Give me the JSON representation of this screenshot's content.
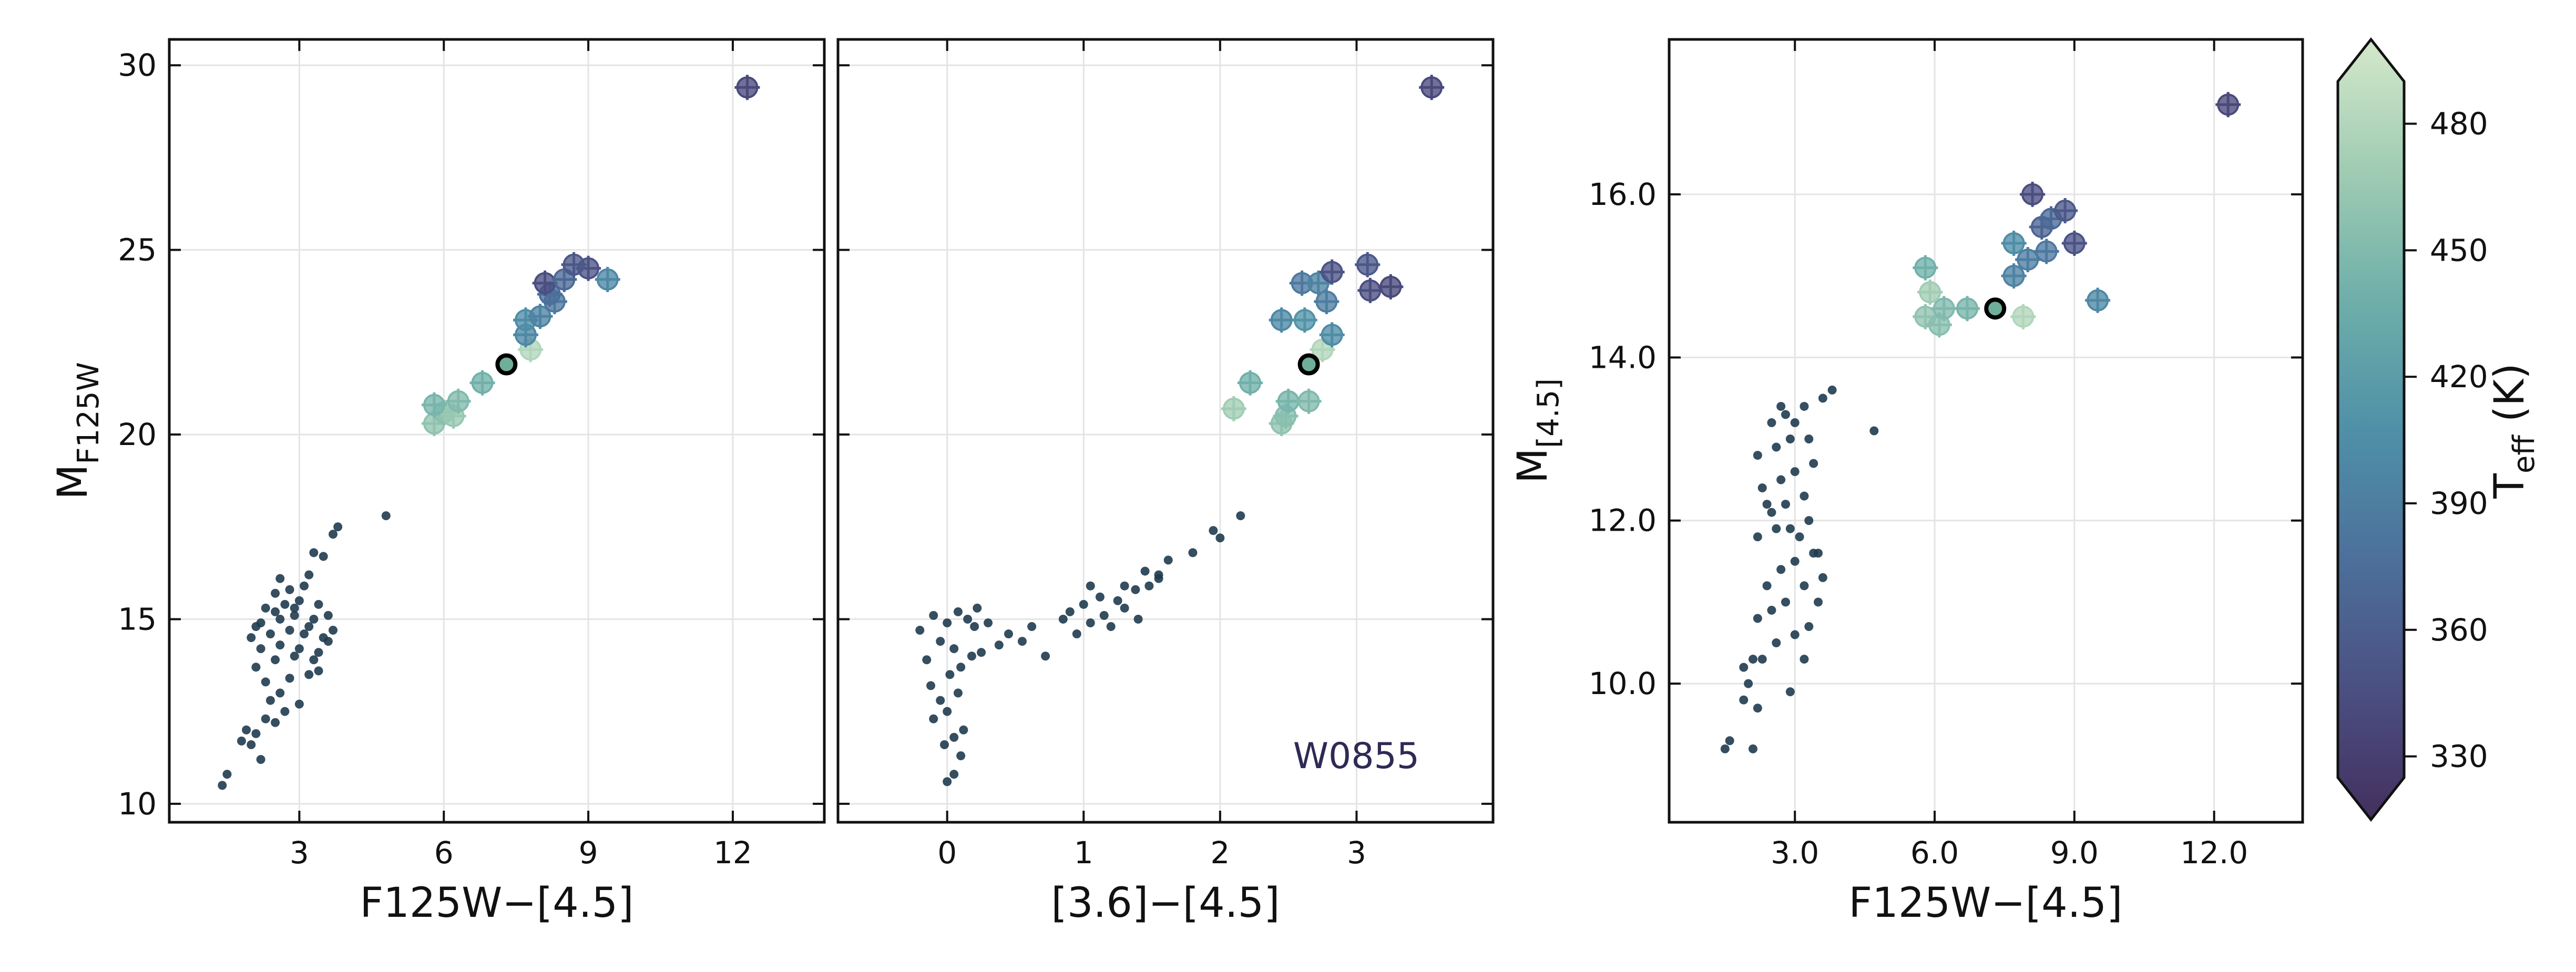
{
  "colors": {
    "frame": "#111111",
    "grid": "#e4e4e4",
    "box_fill": "#e6e6e6",
    "field_dot": "#1f3b4f",
    "highlight_edge": "#000000",
    "annotation": "#2e2a55",
    "cmap": [
      "#43305e",
      "#4b4f82",
      "#4c709b",
      "#4f90a8",
      "#6eafaa",
      "#a0ccb3",
      "#d4e8cb"
    ]
  },
  "chart_data": [
    {
      "id": "left",
      "type": "scatter",
      "xlabel": "F125W−[4.5]",
      "ylabel": "M",
      "ylabel_sub": "F125W",
      "xlim": [
        0.3,
        13.9
      ],
      "ylim": [
        30.7,
        9.5
      ],
      "xticks": [
        3,
        6,
        9,
        12
      ],
      "yticks": [
        10,
        15,
        20,
        25,
        30
      ],
      "tick_decimals": 0,
      "grid": true,
      "highlight_box": {
        "x0": 4.8,
        "x1": 10.4,
        "y0": 19.6,
        "y1": 25.2
      },
      "highlight_point": {
        "x": 7.3,
        "y": 21.9
      },
      "field_points": [
        [
          1.4,
          10.5
        ],
        [
          1.5,
          10.8
        ],
        [
          2.2,
          11.2
        ],
        [
          1.8,
          11.7
        ],
        [
          2.0,
          11.6
        ],
        [
          2.1,
          11.9
        ],
        [
          1.9,
          12.0
        ],
        [
          2.3,
          12.3
        ],
        [
          2.5,
          12.2
        ],
        [
          2.7,
          12.5
        ],
        [
          3.0,
          12.7
        ],
        [
          2.4,
          12.8
        ],
        [
          2.6,
          13.0
        ],
        [
          2.3,
          13.3
        ],
        [
          2.8,
          13.4
        ],
        [
          3.2,
          13.5
        ],
        [
          3.4,
          13.6
        ],
        [
          2.1,
          13.7
        ],
        [
          2.5,
          13.9
        ],
        [
          2.9,
          14.0
        ],
        [
          3.3,
          13.9
        ],
        [
          2.2,
          14.2
        ],
        [
          2.6,
          14.3
        ],
        [
          3.0,
          14.2
        ],
        [
          3.4,
          14.1
        ],
        [
          3.6,
          14.4
        ],
        [
          2.0,
          14.5
        ],
        [
          2.4,
          14.6
        ],
        [
          2.8,
          14.7
        ],
        [
          3.1,
          14.6
        ],
        [
          3.5,
          14.5
        ],
        [
          3.7,
          14.7
        ],
        [
          2.2,
          14.9
        ],
        [
          2.6,
          15.0
        ],
        [
          2.9,
          15.1
        ],
        [
          3.3,
          15.0
        ],
        [
          3.6,
          15.1
        ],
        [
          2.3,
          15.3
        ],
        [
          2.7,
          15.4
        ],
        [
          3.0,
          15.5
        ],
        [
          3.4,
          15.4
        ],
        [
          2.5,
          15.7
        ],
        [
          2.8,
          15.8
        ],
        [
          3.1,
          15.9
        ],
        [
          2.6,
          16.1
        ],
        [
          3.2,
          16.2
        ],
        [
          3.5,
          16.7
        ],
        [
          3.3,
          16.8
        ],
        [
          3.7,
          17.3
        ],
        [
          3.8,
          17.5
        ],
        [
          4.8,
          17.8
        ],
        [
          2.1,
          14.8
        ],
        [
          2.9,
          15.3
        ],
        [
          3.2,
          14.8
        ],
        [
          2.5,
          15.2
        ]
      ],
      "bd_points": [
        {
          "x": 5.8,
          "y": 20.3,
          "teff": 460
        },
        {
          "x": 6.0,
          "y": 20.6,
          "teff": 455
        },
        {
          "x": 6.2,
          "y": 20.5,
          "teff": 465
        },
        {
          "x": 5.8,
          "y": 20.8,
          "teff": 445
        },
        {
          "x": 6.3,
          "y": 20.9,
          "teff": 450
        },
        {
          "x": 6.8,
          "y": 21.4,
          "teff": 440
        },
        {
          "x": 7.8,
          "y": 22.3,
          "teff": 480
        },
        {
          "x": 7.7,
          "y": 22.7,
          "teff": 400
        },
        {
          "x": 7.7,
          "y": 23.1,
          "teff": 405
        },
        {
          "x": 8.0,
          "y": 23.2,
          "teff": 395
        },
        {
          "x": 8.3,
          "y": 23.6,
          "teff": 385
        },
        {
          "x": 8.2,
          "y": 23.8,
          "teff": 375
        },
        {
          "x": 8.1,
          "y": 24.1,
          "teff": 345
        },
        {
          "x": 8.5,
          "y": 24.2,
          "teff": 370
        },
        {
          "x": 9.4,
          "y": 24.2,
          "teff": 400
        },
        {
          "x": 9.0,
          "y": 24.5,
          "teff": 350
        },
        {
          "x": 8.7,
          "y": 24.6,
          "teff": 355
        },
        {
          "x": 12.3,
          "y": 29.4,
          "teff": 340
        }
      ]
    },
    {
      "id": "middle",
      "type": "scatter",
      "xlabel": "[3.6]−[4.5]",
      "xlim": [
        -0.8,
        4.0
      ],
      "ylim": [
        30.7,
        9.5
      ],
      "xticks": [
        0,
        1,
        2,
        3
      ],
      "yticks": [
        10,
        15,
        20,
        25,
        30
      ],
      "tick_decimals": 0,
      "grid": true,
      "annotation": {
        "text": "W0855"
      },
      "highlight_box": {
        "x0": 1.85,
        "x1": 3.55,
        "y0": 19.6,
        "y1": 25.2
      },
      "highlight_point": {
        "x": 2.65,
        "y": 21.9
      },
      "field_points": [
        [
          0.0,
          10.6
        ],
        [
          0.05,
          10.8
        ],
        [
          0.1,
          11.3
        ],
        [
          -0.02,
          11.6
        ],
        [
          0.05,
          11.8
        ],
        [
          0.12,
          12.0
        ],
        [
          -0.1,
          12.3
        ],
        [
          0.0,
          12.5
        ],
        [
          -0.05,
          12.8
        ],
        [
          0.08,
          13.0
        ],
        [
          -0.12,
          13.2
        ],
        [
          0.02,
          13.5
        ],
        [
          0.1,
          13.7
        ],
        [
          -0.15,
          13.9
        ],
        [
          0.18,
          14.0
        ],
        [
          0.25,
          14.1
        ],
        [
          0.38,
          14.3
        ],
        [
          0.55,
          14.4
        ],
        [
          0.72,
          14.0
        ],
        [
          0.45,
          14.6
        ],
        [
          0.62,
          14.8
        ],
        [
          -0.2,
          14.7
        ],
        [
          0.0,
          14.9
        ],
        [
          0.15,
          15.0
        ],
        [
          0.3,
          14.9
        ],
        [
          -0.1,
          15.1
        ],
        [
          0.08,
          15.2
        ],
        [
          0.22,
          15.3
        ],
        [
          0.95,
          14.6
        ],
        [
          1.05,
          14.9
        ],
        [
          1.15,
          15.1
        ],
        [
          0.9,
          15.2
        ],
        [
          1.2,
          14.8
        ],
        [
          1.3,
          15.3
        ],
        [
          1.4,
          15.0
        ],
        [
          1.0,
          15.4
        ],
        [
          1.12,
          15.6
        ],
        [
          1.25,
          15.5
        ],
        [
          1.38,
          15.8
        ],
        [
          1.48,
          15.9
        ],
        [
          1.55,
          16.1
        ],
        [
          1.45,
          16.3
        ],
        [
          1.62,
          16.6
        ],
        [
          1.55,
          16.2
        ],
        [
          1.8,
          16.8
        ],
        [
          2.0,
          17.2
        ],
        [
          1.95,
          17.4
        ],
        [
          2.15,
          17.8
        ],
        [
          0.05,
          14.2
        ],
        [
          0.2,
          14.8
        ],
        [
          1.05,
          15.9
        ],
        [
          1.3,
          15.9
        ],
        [
          0.85,
          15.0
        ],
        [
          -0.05,
          14.4
        ]
      ],
      "bd_points": [
        {
          "x": 2.45,
          "y": 20.3,
          "teff": 460
        },
        {
          "x": 2.48,
          "y": 20.5,
          "teff": 455
        },
        {
          "x": 2.1,
          "y": 20.7,
          "teff": 470
        },
        {
          "x": 2.5,
          "y": 20.9,
          "teff": 445
        },
        {
          "x": 2.65,
          "y": 20.9,
          "teff": 450
        },
        {
          "x": 2.22,
          "y": 21.4,
          "teff": 440
        },
        {
          "x": 2.75,
          "y": 22.3,
          "teff": 480
        },
        {
          "x": 2.82,
          "y": 22.7,
          "teff": 405
        },
        {
          "x": 2.45,
          "y": 23.1,
          "teff": 400
        },
        {
          "x": 2.62,
          "y": 23.1,
          "teff": 410
        },
        {
          "x": 2.78,
          "y": 23.6,
          "teff": 390
        },
        {
          "x": 3.1,
          "y": 23.9,
          "teff": 345
        },
        {
          "x": 2.6,
          "y": 24.1,
          "teff": 385
        },
        {
          "x": 2.72,
          "y": 24.1,
          "teff": 395
        },
        {
          "x": 3.25,
          "y": 24.0,
          "teff": 340
        },
        {
          "x": 2.82,
          "y": 24.4,
          "teff": 350
        },
        {
          "x": 3.08,
          "y": 24.6,
          "teff": 355
        },
        {
          "x": 3.55,
          "y": 29.4,
          "teff": 340
        }
      ]
    },
    {
      "id": "right",
      "type": "scatter",
      "xlabel": "F125W−[4.5]",
      "ylabel": "M",
      "ylabel_sub": "[4.5]",
      "xlim": [
        0.3,
        13.9
      ],
      "ylim": [
        17.9,
        8.3
      ],
      "xticks": [
        3,
        6,
        9,
        12
      ],
      "yticks": [
        10.0,
        12.0,
        14.0,
        16.0
      ],
      "tick_decimals": 1,
      "grid": true,
      "highlight_box": {
        "x0": 4.8,
        "x1": 10.4,
        "y0": 14.2,
        "y1": 16.2
      },
      "highlight_point": {
        "x": 7.3,
        "y": 14.6
      },
      "field_points": [
        [
          1.5,
          9.2
        ],
        [
          1.6,
          9.3
        ],
        [
          2.1,
          9.2
        ],
        [
          1.9,
          9.8
        ],
        [
          2.2,
          9.7
        ],
        [
          2.0,
          10.0
        ],
        [
          1.9,
          10.2
        ],
        [
          2.1,
          10.3
        ],
        [
          2.3,
          10.3
        ],
        [
          2.9,
          9.9
        ],
        [
          3.2,
          10.3
        ],
        [
          2.6,
          10.5
        ],
        [
          3.0,
          10.6
        ],
        [
          3.3,
          10.7
        ],
        [
          2.2,
          10.8
        ],
        [
          2.5,
          10.9
        ],
        [
          2.8,
          11.0
        ],
        [
          3.5,
          11.0
        ],
        [
          3.2,
          11.2
        ],
        [
          3.6,
          11.3
        ],
        [
          2.4,
          11.2
        ],
        [
          2.7,
          11.4
        ],
        [
          3.0,
          11.5
        ],
        [
          3.4,
          11.6
        ],
        [
          2.2,
          11.8
        ],
        [
          2.6,
          11.9
        ],
        [
          3.1,
          11.8
        ],
        [
          3.3,
          12.0
        ],
        [
          2.5,
          12.1
        ],
        [
          2.8,
          12.2
        ],
        [
          3.2,
          12.3
        ],
        [
          2.3,
          12.4
        ],
        [
          2.7,
          12.5
        ],
        [
          3.0,
          12.6
        ],
        [
          3.4,
          12.7
        ],
        [
          2.2,
          12.8
        ],
        [
          2.6,
          12.9
        ],
        [
          2.9,
          13.0
        ],
        [
          3.3,
          13.0
        ],
        [
          2.5,
          13.2
        ],
        [
          2.8,
          13.3
        ],
        [
          3.2,
          13.4
        ],
        [
          3.6,
          13.5
        ],
        [
          3.8,
          13.6
        ],
        [
          2.7,
          13.4
        ],
        [
          4.7,
          13.1
        ],
        [
          3.0,
          13.2
        ],
        [
          2.4,
          12.2
        ],
        [
          3.5,
          11.6
        ],
        [
          2.9,
          11.9
        ]
      ],
      "bd_points": [
        {
          "x": 5.8,
          "y": 14.5,
          "teff": 460
        },
        {
          "x": 6.1,
          "y": 14.4,
          "teff": 455
        },
        {
          "x": 6.2,
          "y": 14.6,
          "teff": 450
        },
        {
          "x": 5.9,
          "y": 14.8,
          "teff": 470
        },
        {
          "x": 6.7,
          "y": 14.6,
          "teff": 445
        },
        {
          "x": 7.9,
          "y": 14.5,
          "teff": 480
        },
        {
          "x": 9.5,
          "y": 14.7,
          "teff": 400
        },
        {
          "x": 5.8,
          "y": 15.1,
          "teff": 440
        },
        {
          "x": 7.7,
          "y": 15.0,
          "teff": 395
        },
        {
          "x": 8.0,
          "y": 15.2,
          "teff": 390
        },
        {
          "x": 8.4,
          "y": 15.3,
          "teff": 385
        },
        {
          "x": 7.7,
          "y": 15.4,
          "teff": 405
        },
        {
          "x": 9.0,
          "y": 15.4,
          "teff": 350
        },
        {
          "x": 8.3,
          "y": 15.6,
          "teff": 365
        },
        {
          "x": 8.5,
          "y": 15.7,
          "teff": 370
        },
        {
          "x": 8.8,
          "y": 15.8,
          "teff": 355
        },
        {
          "x": 8.1,
          "y": 16.0,
          "teff": 345
        },
        {
          "x": 12.3,
          "y": 17.1,
          "teff": 340
        }
      ]
    }
  ],
  "colorbar": {
    "label": "T",
    "label_sub": "eff",
    "label_unit": " (K)",
    "vmin": 315,
    "vmax": 500,
    "ticks": [
      "330",
      "360",
      "390",
      "420",
      "450",
      "480"
    ]
  }
}
